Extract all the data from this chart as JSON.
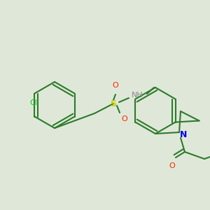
{
  "background_color": "#dfe8d8",
  "bond_color": "#2d7a2d",
  "bond_width": 1.5,
  "atom_colors": {
    "Cl": "#00cc00",
    "S": "#cccc00",
    "O": "#ff2200",
    "N_blue": "#0000ee",
    "N_gray": "#888888",
    "C": "#2d7a2d"
  },
  "fig_width": 3.0,
  "fig_height": 3.0,
  "dpi": 100
}
